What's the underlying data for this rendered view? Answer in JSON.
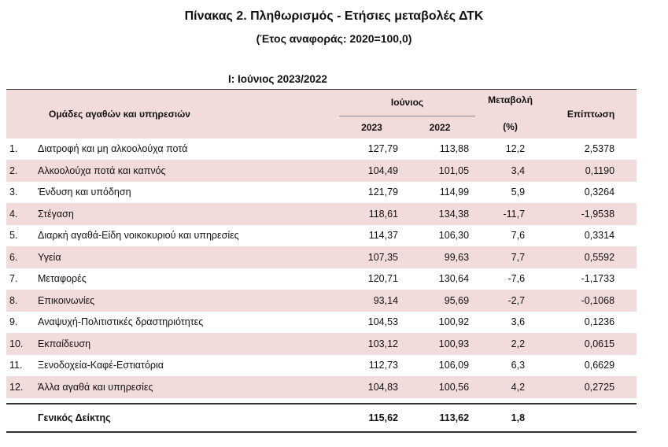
{
  "title": "Πίνακας 2. Πληθωρισμός - Ετήσιες μεταβολές ΔΤΚ",
  "subtitle": "(Έτος αναφοράς: 2020=100,0)",
  "section": "I: Ιούνιος 2023/2022",
  "header": {
    "groups": "Ομάδες αγαθών και υπηρεσιών",
    "month": "Ιούνιος",
    "year_a": "2023",
    "year_b": "2022",
    "change": "Μεταβολή",
    "change_unit": "(%)",
    "impact": "Επίπτωση"
  },
  "rows": [
    {
      "num": "1.",
      "name": "Διατροφή και μη αλκοολούχα ποτά",
      "a": "127,79",
      "b": "113,88",
      "chg": "12,2",
      "imp": "2,5378"
    },
    {
      "num": "2.",
      "name": "Αλκοολούχα ποτά και καπνός",
      "a": "104,49",
      "b": "101,05",
      "chg": "3,4",
      "imp": "0,1190"
    },
    {
      "num": "3.",
      "name": "Ένδυση και υπόδηση",
      "a": "121,79",
      "b": "114,99",
      "chg": "5,9",
      "imp": "0,3264"
    },
    {
      "num": "4.",
      "name": "Στέγαση",
      "a": "118,61",
      "b": "134,38",
      "chg": "-11,7",
      "imp": "-1,9538"
    },
    {
      "num": "5.",
      "name": "Διαρκή αγαθά-Είδη νοικοκυριού και υπηρεσίες",
      "a": "114,37",
      "b": "106,30",
      "chg": "7,6",
      "imp": "0,3314"
    },
    {
      "num": "6.",
      "name": "Υγεία",
      "a": "107,35",
      "b": "99,63",
      "chg": "7,7",
      "imp": "0,5592"
    },
    {
      "num": "7.",
      "name": "Μεταφορές",
      "a": "120,71",
      "b": "130,64",
      "chg": "-7,6",
      "imp": "-1,1733"
    },
    {
      "num": "8.",
      "name": "Επικοινωνίες",
      "a": "93,14",
      "b": "95,69",
      "chg": "-2,7",
      "imp": "-0,1068"
    },
    {
      "num": "9.",
      "name": "Αναψυχή-Πολιτιστικές δραστηριότητες",
      "a": "104,53",
      "b": "100,92",
      "chg": "3,6",
      "imp": "0,1236"
    },
    {
      "num": "10.",
      "name": "Εκπαίδευση",
      "a": "103,12",
      "b": "100,93",
      "chg": "2,2",
      "imp": "0,0615"
    },
    {
      "num": "11.",
      "name": "Ξενοδοχεία-Καφέ-Εστιατόρια",
      "a": "112,73",
      "b": "106,09",
      "chg": "6,3",
      "imp": "0,6629"
    },
    {
      "num": "12.",
      "name": "Άλλα αγαθά και υπηρεσίες",
      "a": "104,83",
      "b": "100,56",
      "chg": "4,2",
      "imp": "0,2725"
    }
  ],
  "total": {
    "name": "Γενικός Δείκτης",
    "a": "115,62",
    "b": "113,62",
    "chg": "1,8",
    "imp": ""
  },
  "colors": {
    "band": "#f2dcdb",
    "rule": "#333333"
  }
}
